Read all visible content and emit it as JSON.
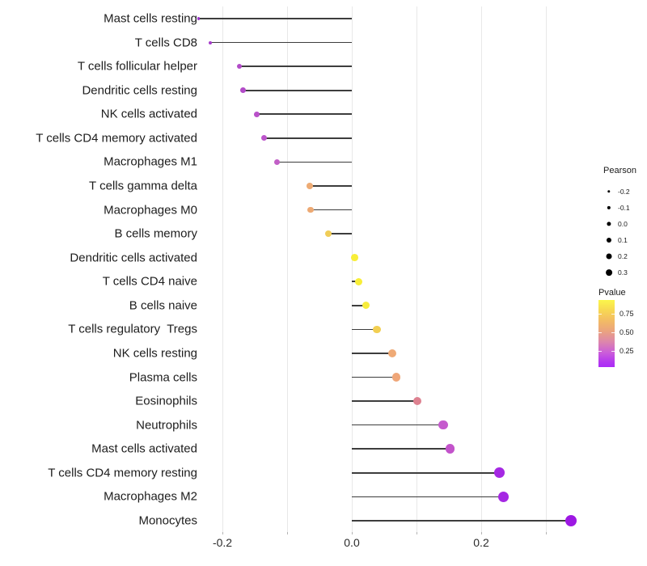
{
  "chart_data": {
    "type": "scatter",
    "variant": "lollipop",
    "title": "",
    "xlabel": "",
    "ylabel": "",
    "x_axis": {
      "tick_values": [
        -0.2,
        0.0,
        0.2
      ],
      "tick_labels": [
        "-0.2",
        "0.0",
        "0.2"
      ],
      "gridline_values": [
        -0.2,
        -0.1,
        0.0,
        0.1,
        0.2,
        0.3
      ],
      "range": [
        -0.265,
        0.37
      ],
      "grid": true
    },
    "size_legend": {
      "title": "Pearson",
      "items": [
        "-0.2",
        "-0.1",
        "0.0",
        "0.1",
        "0.2",
        "0.3"
      ]
    },
    "color_legend": {
      "title": "Pvalue",
      "tick_labels": [
        "0.75",
        "0.50",
        "0.25"
      ],
      "gradient_top_color": "#fbf64b",
      "gradient_bottom_color": "#ab2bf7"
    },
    "stem_color": "#3d3d3d",
    "points": [
      {
        "label": "Mast cells resting",
        "pearson": -0.237,
        "color": "#9b34ca",
        "radius_px": 1.6
      },
      {
        "label": "T cells CD8",
        "pearson": -0.219,
        "color": "#a63cca",
        "radius_px": 2.0
      },
      {
        "label": "T cells follicular helper",
        "pearson": -0.174,
        "color": "#b24bc8",
        "radius_px": 3.2
      },
      {
        "label": "Dendritic cells resting",
        "pearson": -0.168,
        "color": "#b24bc8",
        "radius_px": 3.4
      },
      {
        "label": "NK cells activated",
        "pearson": -0.147,
        "color": "#b951c9",
        "radius_px": 3.4
      },
      {
        "label": "T cells CD4 memory activated",
        "pearson": -0.136,
        "color": "#bc55cb",
        "radius_px": 3.5
      },
      {
        "label": "Macrophages M1",
        "pearson": -0.116,
        "color": "#c25fc7",
        "radius_px": 3.7
      },
      {
        "label": "T cells gamma delta",
        "pearson": -0.065,
        "color": "#eeab74",
        "radius_px": 3.9
      },
      {
        "label": "Macrophages M0",
        "pearson": -0.064,
        "color": "#eda973",
        "radius_px": 3.9
      },
      {
        "label": "B cells memory",
        "pearson": -0.036,
        "color": "#f0cd58",
        "radius_px": 4.1
      },
      {
        "label": "Dendritic cells activated",
        "pearson": 0.004,
        "color": "#f8ee38",
        "radius_px": 4.4
      },
      {
        "label": "T cells CD4 naive",
        "pearson": 0.011,
        "color": "#f8ee38",
        "radius_px": 4.5
      },
      {
        "label": "B cells naive",
        "pearson": 0.022,
        "color": "#f7ec3c",
        "radius_px": 4.6
      },
      {
        "label": "T cells regulatory  Tregs",
        "pearson": 0.039,
        "color": "#f2cf52",
        "radius_px": 4.8
      },
      {
        "label": "NK cells resting",
        "pearson": 0.062,
        "color": "#efaa76",
        "radius_px": 5.0
      },
      {
        "label": "Plasma cells",
        "pearson": 0.069,
        "color": "#efa678",
        "radius_px": 5.1
      },
      {
        "label": "Eosinophils",
        "pearson": 0.101,
        "color": "#dd8190",
        "radius_px": 5.3
      },
      {
        "label": "Neutrophils",
        "pearson": 0.141,
        "color": "#c55bcd",
        "radius_px": 5.8
      },
      {
        "label": "Mast cells activated",
        "pearson": 0.152,
        "color": "#c353cb",
        "radius_px": 5.9
      },
      {
        "label": "T cells CD4 memory resting",
        "pearson": 0.228,
        "color": "#a528e3",
        "radius_px": 6.4
      },
      {
        "label": "Macrophages M2",
        "pearson": 0.234,
        "color": "#a528e3",
        "radius_px": 6.5
      },
      {
        "label": "Monocytes",
        "pearson": 0.339,
        "color": "#9d18e3",
        "radius_px": 7.2
      }
    ]
  }
}
